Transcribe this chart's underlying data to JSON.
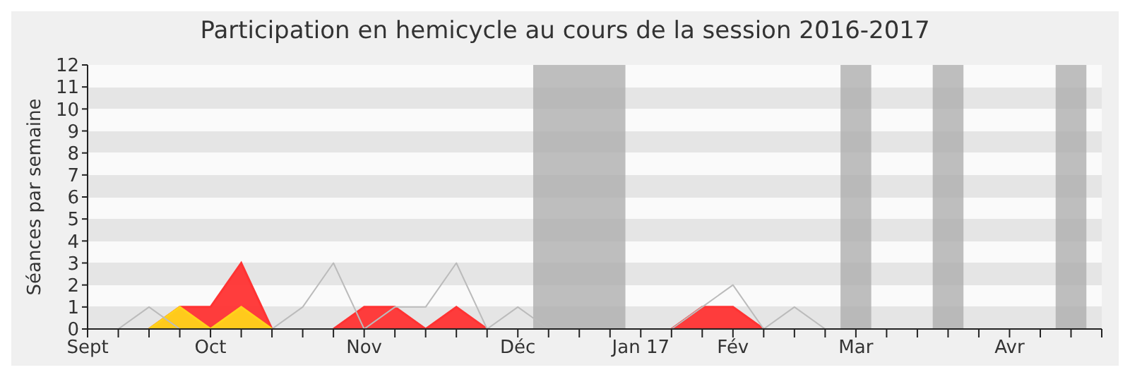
{
  "chart_data": {
    "type": "area",
    "title": "Participation en hemicycle au cours de la session 2016-2017",
    "ylabel": "Séances par semaine",
    "categories": [
      "Sept",
      null,
      null,
      null,
      "Oct",
      null,
      null,
      null,
      null,
      "Nov",
      null,
      null,
      null,
      null,
      "Déc",
      null,
      null,
      null,
      "Jan 17",
      null,
      null,
      "Fév",
      null,
      null,
      null,
      "Mar",
      null,
      null,
      null,
      null,
      "Avr",
      null,
      null,
      null
    ],
    "series": [
      {
        "type": "line",
        "color": "#bbbbbb",
        "values": [
          null,
          0,
          1,
          0,
          0,
          0,
          0,
          1,
          3,
          0,
          1,
          1,
          3,
          0,
          1,
          0,
          null,
          null,
          null,
          0,
          1,
          2,
          0,
          1,
          0,
          null,
          null,
          null,
          null,
          null,
          null,
          null,
          null,
          null
        ]
      },
      {
        "color": "#ff3333",
        "values": [
          null,
          null,
          0,
          1,
          1,
          3,
          0,
          null,
          0,
          1,
          1,
          0,
          1,
          0,
          null,
          null,
          null,
          null,
          null,
          0,
          1,
          1,
          0,
          null,
          null,
          null,
          null,
          null,
          null,
          null,
          null,
          null,
          null,
          null
        ]
      },
      {
        "color": "#ffd21a",
        "values": [
          null,
          null,
          0,
          1,
          0,
          1,
          0,
          null,
          null,
          null,
          null,
          null,
          null,
          null,
          null,
          null,
          null,
          null,
          null,
          null,
          null,
          null,
          null,
          null,
          null,
          null,
          null,
          null,
          null,
          null,
          null,
          null,
          null,
          null
        ]
      }
    ],
    "ylim": [
      0,
      12
    ],
    "yticks": [
      0,
      1,
      2,
      3,
      4,
      5,
      6,
      7,
      8,
      9,
      10,
      11,
      12
    ],
    "legend": false
  }
}
